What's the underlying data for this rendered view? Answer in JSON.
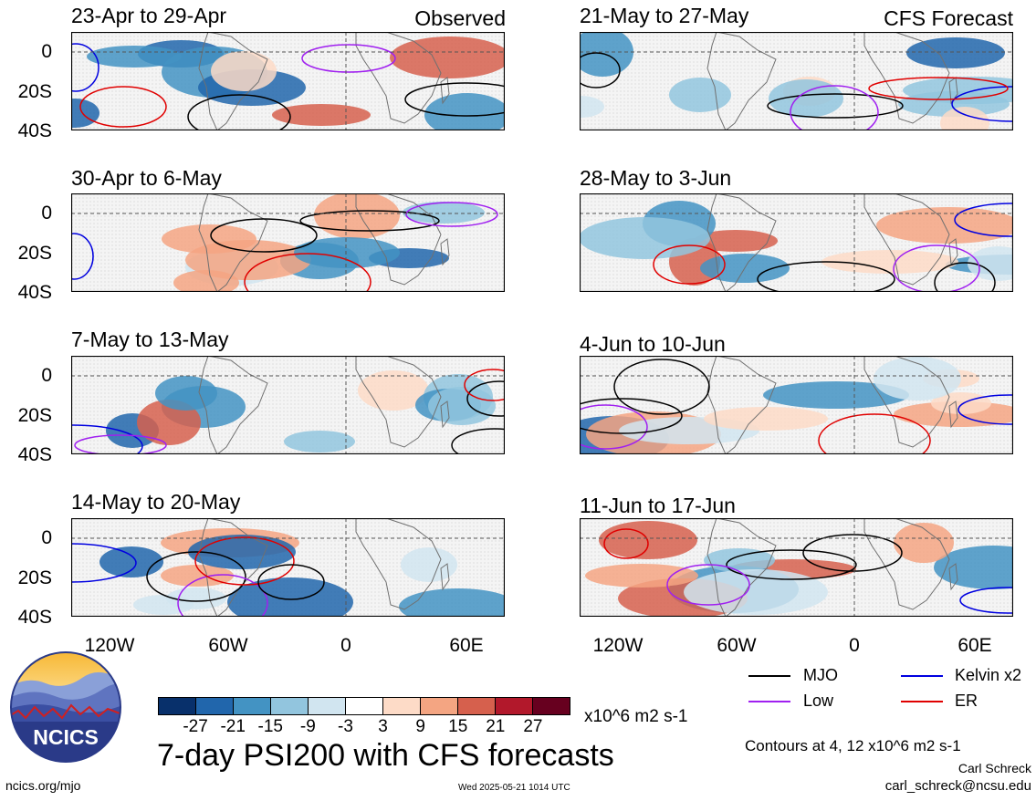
{
  "labels": {
    "observed": "Observed",
    "forecast": "CFS Forecast",
    "units": "x10^6 m2 s-1",
    "main_title": "7-day PSI200 with CFS forecasts",
    "contours_note": "Contours at 4, 12 x10^6 m2 s-1",
    "author": "Carl Schreck",
    "email": "carl_schreck@ncsu.edu",
    "site": "ncics.org/mjo",
    "timestamp": "Wed 2025-05-21 1014 UTC",
    "logo_text": "NCICS"
  },
  "panels_left": [
    {
      "title": "23-Apr to 29-Apr"
    },
    {
      "title": "30-Apr to 6-May"
    },
    {
      "title": "7-May to 13-May"
    },
    {
      "title": "14-May to 20-May"
    }
  ],
  "panels_right": [
    {
      "title": "21-May to 27-May"
    },
    {
      "title": "28-May to 3-Jun"
    },
    {
      "title": "4-Jun to 10-Jun"
    },
    {
      "title": "11-Jun to 17-Jun"
    }
  ],
  "lat_ticks": [
    "0",
    "20S",
    "40S"
  ],
  "lon_ticks": [
    "120W",
    "60W",
    "0",
    "60E"
  ],
  "legend": [
    {
      "label": "MJO",
      "color": "#000000"
    },
    {
      "label": "Kelvin x2",
      "color": "#0000e0"
    },
    {
      "label": "Low",
      "color": "#a020f0"
    },
    {
      "label": "ER",
      "color": "#e00000"
    }
  ],
  "colorbar": {
    "ticks": [
      "-27",
      "-21",
      "-15",
      "-9",
      "-3",
      "3",
      "9",
      "15",
      "21",
      "27"
    ],
    "colors": [
      "#08306b",
      "#2166ac",
      "#4393c3",
      "#92c5de",
      "#d1e5f0",
      "#ffffff",
      "#fddbc7",
      "#f4a582",
      "#d6604d",
      "#b2182b",
      "#67001f"
    ]
  }
}
